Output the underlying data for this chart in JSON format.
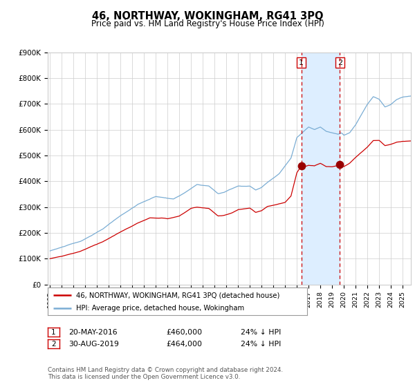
{
  "title": "46, NORTHWAY, WOKINGHAM, RG41 3PQ",
  "subtitle": "Price paid vs. HM Land Registry's House Price Index (HPI)",
  "ylim": [
    0,
    900000
  ],
  "yticks": [
    0,
    100000,
    200000,
    300000,
    400000,
    500000,
    600000,
    700000,
    800000,
    900000
  ],
  "ytick_labels": [
    "£0",
    "£100K",
    "£200K",
    "£300K",
    "£400K",
    "£500K",
    "£600K",
    "£700K",
    "£800K",
    "£900K"
  ],
  "x_start_year": 1995,
  "x_end_year": 2025,
  "hpi_color": "#7aadd4",
  "price_color": "#cc0000",
  "sale1_date": 2016.38,
  "sale1_price": 460000,
  "sale2_date": 2019.66,
  "sale2_price": 464000,
  "vline_color": "#cc0000",
  "shade_color": "#ddeeff",
  "legend_label_red": "46, NORTHWAY, WOKINGHAM, RG41 3PQ (detached house)",
  "legend_label_blue": "HPI: Average price, detached house, Wokingham",
  "table_row1": [
    "1",
    "20-MAY-2016",
    "£460,000",
    "24% ↓ HPI"
  ],
  "table_row2": [
    "2",
    "30-AUG-2019",
    "£464,000",
    "24% ↓ HPI"
  ],
  "footer": "Contains HM Land Registry data © Crown copyright and database right 2024.\nThis data is licensed under the Open Government Licence v3.0.",
  "background_color": "#ffffff",
  "grid_color": "#cccccc"
}
